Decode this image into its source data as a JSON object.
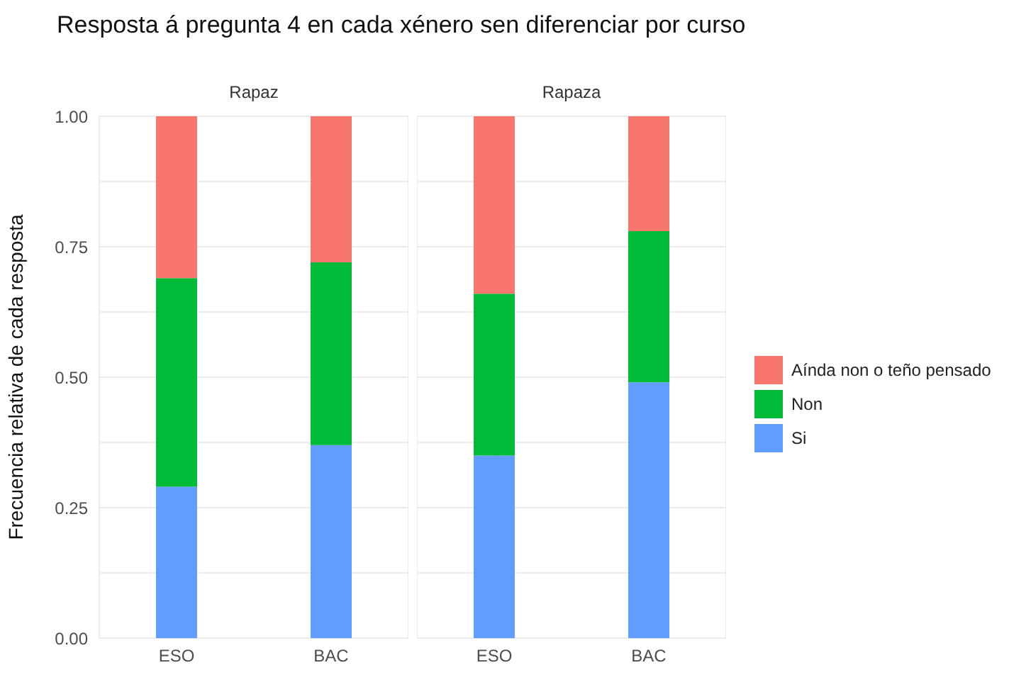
{
  "chart_data": [
    {
      "type": "bar",
      "title": "Resposta á pregunta 4 en cada xénero sen diferenciar por curso",
      "subtitle": "Rapaz",
      "ylabel": "Frecuencia relativa de cada resposta",
      "categories": [
        "ESO",
        "BAC"
      ],
      "stacked": true,
      "series": [
        {
          "name": "Si",
          "color": "#619cff",
          "values": [
            0.29,
            0.37
          ]
        },
        {
          "name": "Non",
          "color": "#00ba38",
          "values": [
            0.4,
            0.35
          ]
        },
        {
          "name": "Aínda non o teño pensado",
          "color": "#f8766d",
          "values": [
            0.31,
            0.28
          ]
        }
      ],
      "ylim": [
        0,
        1
      ],
      "yticks": [
        {
          "value": 0,
          "label": "0.00"
        },
        {
          "value": 0.125,
          "label": null
        },
        {
          "value": 0.25,
          "label": "0.25"
        },
        {
          "value": 0.375,
          "label": null
        },
        {
          "value": 0.5,
          "label": "0.50"
        },
        {
          "value": 0.625,
          "label": null
        },
        {
          "value": 0.75,
          "label": "0.75"
        },
        {
          "value": 0.875,
          "label": null
        },
        {
          "value": 1,
          "label": "1.00"
        }
      ],
      "grid": true,
      "legend": "right"
    },
    {
      "type": "bar",
      "subtitle": "Rapaza",
      "categories": [
        "ESO",
        "BAC"
      ],
      "stacked": true,
      "series": [
        {
          "color": "#619cff",
          "values": [
            0.35,
            0.49
          ]
        },
        {
          "color": "#00ba38",
          "values": [
            0.31,
            0.29
          ]
        },
        {
          "color": "#f8766d",
          "values": [
            0.34,
            0.22
          ]
        }
      ],
      "ylim": [
        0,
        1
      ],
      "yticks": [
        0,
        0.125,
        0.25,
        0.375,
        0.5,
        0.625,
        0.75,
        0.875,
        1
      ],
      "grid": true,
      "tick_labels": "x"
    }
  ]
}
